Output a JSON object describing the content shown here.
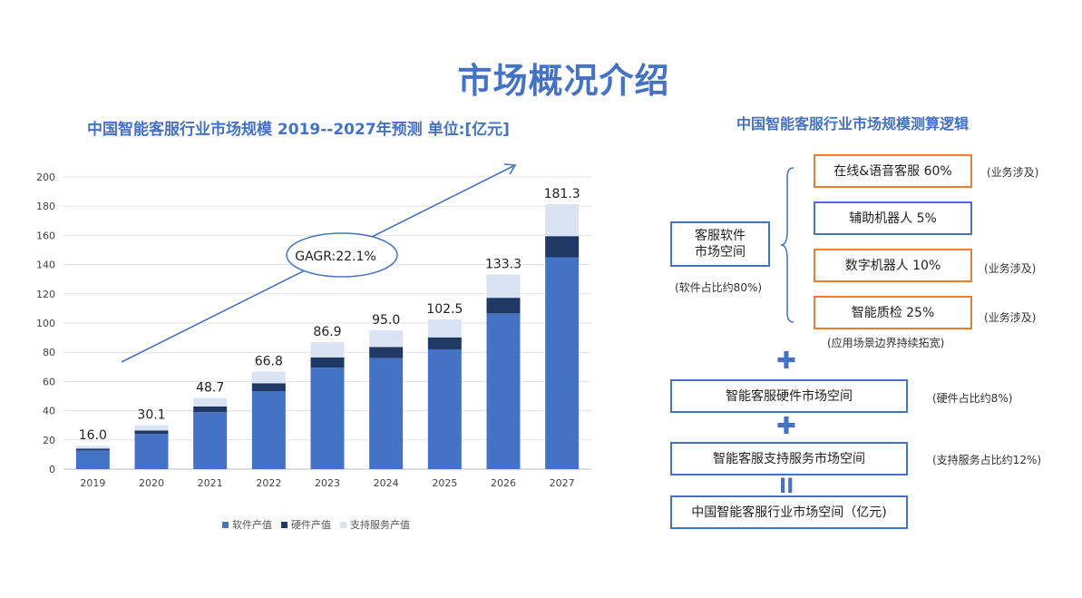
{
  "page_title": "市场概况介绍",
  "chart_title": "中国智能客服行业市场规模 2019--2027年预测    单位:[亿元]",
  "chart_data": {
    "type": "bar",
    "stacked": true,
    "categories": [
      "2019",
      "2020",
      "2021",
      "2022",
      "2023",
      "2024",
      "2025",
      "2026",
      "2027"
    ],
    "series": [
      {
        "name": "软件产值",
        "color": "#4472c4",
        "values": [
          12.8,
          24.1,
          39.0,
          53.4,
          69.5,
          76.0,
          82.0,
          106.6,
          145.0
        ]
      },
      {
        "name": "硬件产值",
        "color": "#203864",
        "values": [
          1.3,
          2.4,
          3.9,
          5.3,
          7.0,
          7.6,
          8.2,
          10.7,
          14.5
        ]
      },
      {
        "name": "支持服务产值",
        "color": "#dae3f3",
        "values": [
          1.9,
          3.6,
          5.8,
          8.1,
          10.4,
          11.4,
          12.3,
          16.0,
          21.8
        ]
      }
    ],
    "totals": [
      "16.0",
      "30.1",
      "48.7",
      "66.8",
      "86.9",
      "95.0",
      "102.5",
      "133.3",
      "181.3"
    ],
    "ylim": [
      0,
      200
    ],
    "yticks": [
      "0",
      "20",
      "40",
      "60",
      "80",
      "100",
      "120",
      "140",
      "160",
      "180",
      "200"
    ],
    "annotation": "GAGR:22.1%",
    "legend_position": "bottom",
    "grid": true
  },
  "logic": {
    "title": "中国智能客服行业市场规模测算逻辑",
    "software_box_line1": "客服软件",
    "software_box_line2": "市场空间",
    "software_note": "(软件占比约80%)",
    "items": [
      {
        "label": "在线&语音客服  60%",
        "note": "(业务涉及)"
      },
      {
        "label": "辅助机器人  5%",
        "note": ""
      },
      {
        "label": "数字机器人  10%",
        "note": "(业务涉及)"
      },
      {
        "label": "智能质检  25%",
        "note": "(业务涉及)"
      }
    ],
    "expand_note": "(应用场景边界持续拓宽)",
    "plus1": "✚",
    "hardware_box": "智能客服硬件市场空间",
    "hardware_note": "(硬件占比约8%)",
    "plus2": "✚",
    "service_box": "智能客服支持服务市场空间",
    "service_note": "(支持服务占比约12%)",
    "equals": "II",
    "total_box": "中国智能客服行业市场空间（亿元)"
  },
  "colors": {
    "accent": "#4472c4",
    "orange": "#ed7d31",
    "dark": "#203864",
    "light": "#dae3f3"
  }
}
